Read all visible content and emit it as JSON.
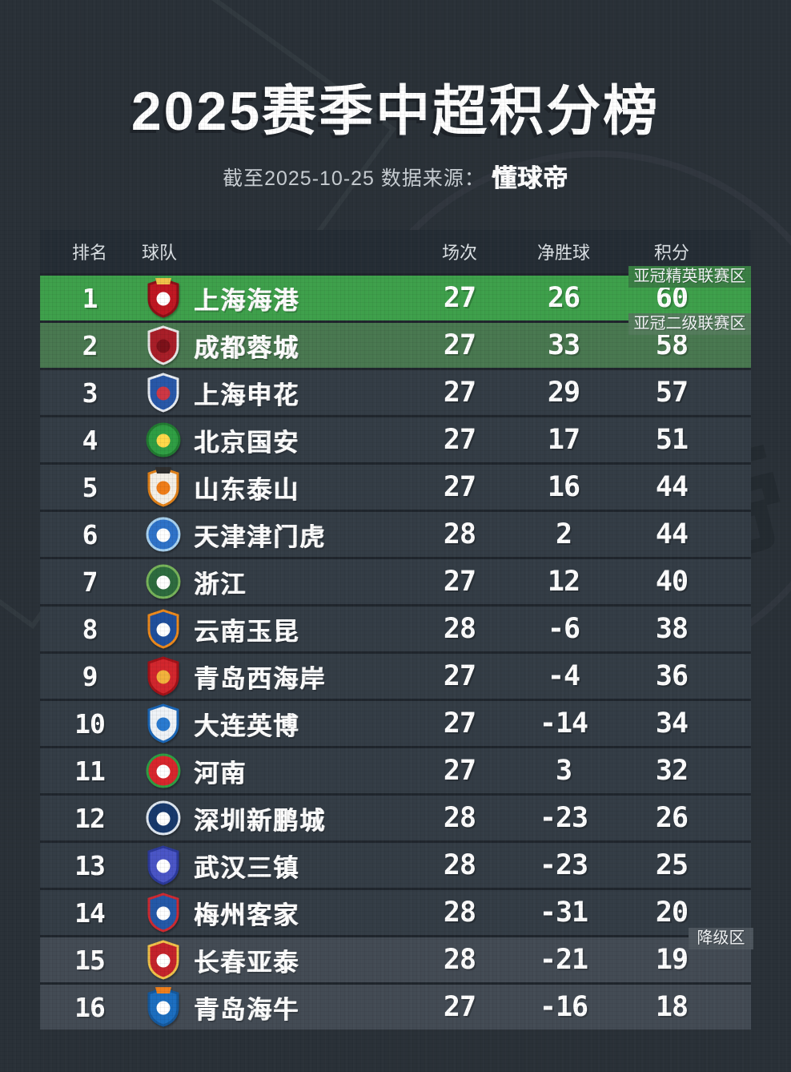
{
  "header": {
    "title": "2025赛季中超积分榜",
    "subtitle_prefix": "截至2025-10-25 数据来源：",
    "source_brand": "懂球帝"
  },
  "colors": {
    "page_bg": "#2a3138",
    "table_gap": "#20262d",
    "header_bg": "#252d35",
    "header_text": "#dce1e5",
    "text_muted": "#c9cfd4",
    "row_default": "#343d46",
    "row_leader": "#3ea04b",
    "row_acl_two": "#497850",
    "row_relegation": "#434b54",
    "chip_acl_elite": "#3a7f44",
    "chip_acl_two": "#547c5c",
    "chip_relegation": "#4e565e"
  },
  "table": {
    "columns": [
      "排名",
      "球队",
      "场次",
      "净胜球",
      "积分"
    ],
    "rows": [
      {
        "rank": "1",
        "team": "上海海港",
        "played": "27",
        "gd": "26",
        "points": "60",
        "zone": "acl-elite",
        "zone_label": "亚冠精英联赛区",
        "logo": {
          "shape": "shield",
          "bg": "#c01722",
          "ring": "#8e0f17",
          "ball": "#ffffff",
          "band": "#f0c24a"
        }
      },
      {
        "rank": "2",
        "team": "成都蓉城",
        "played": "27",
        "gd": "33",
        "points": "58",
        "zone": "acl-two",
        "zone_label": "亚冠二级联赛区",
        "logo": {
          "shape": "shield",
          "bg": "#a81e28",
          "ring": "#e8e8e8",
          "ball": "#7c1119"
        }
      },
      {
        "rank": "3",
        "team": "上海申花",
        "played": "27",
        "gd": "29",
        "points": "57",
        "zone": "normal",
        "logo": {
          "shape": "shield",
          "bg": "#2857a8",
          "ring": "#e8ecf2",
          "ball": "#cd3744"
        }
      },
      {
        "rank": "4",
        "team": "北京国安",
        "played": "27",
        "gd": "17",
        "points": "51",
        "zone": "normal",
        "logo": {
          "shape": "circle",
          "bg": "#2f9e43",
          "ring": "#217a31",
          "ball": "#ffd94a"
        }
      },
      {
        "rank": "5",
        "team": "山东泰山",
        "played": "27",
        "gd": "16",
        "points": "44",
        "zone": "normal",
        "logo": {
          "shape": "shield",
          "bg": "#f3efe6",
          "ring": "#e08119",
          "ball": "#ef7d18",
          "band": "#2e2e2e"
        }
      },
      {
        "rank": "6",
        "team": "天津津门虎",
        "played": "28",
        "gd": "2",
        "points": "44",
        "zone": "normal",
        "logo": {
          "shape": "circle",
          "bg": "#2e72c8",
          "ring": "#a9d2f0",
          "ball": "#ffffff"
        }
      },
      {
        "rank": "7",
        "team": "浙江",
        "played": "27",
        "gd": "12",
        "points": "40",
        "zone": "normal",
        "logo": {
          "shape": "circle",
          "bg": "#2d6b3e",
          "ring": "#77b45a",
          "ball": "#ffffff"
        }
      },
      {
        "rank": "8",
        "team": "云南玉昆",
        "played": "28",
        "gd": "-6",
        "points": "38",
        "zone": "normal",
        "logo": {
          "shape": "shield",
          "bg": "#1f4f9c",
          "ring": "#ee8a1c",
          "ball": "#ffffff"
        }
      },
      {
        "rank": "9",
        "team": "青岛西海岸",
        "played": "27",
        "gd": "-4",
        "points": "36",
        "zone": "normal",
        "logo": {
          "shape": "shield",
          "bg": "#d2262d",
          "ring": "#a21218",
          "ball": "#f2b23c"
        }
      },
      {
        "rank": "10",
        "team": "大连英博",
        "played": "27",
        "gd": "-14",
        "points": "34",
        "zone": "normal",
        "logo": {
          "shape": "shield",
          "bg": "#eef2f6",
          "ring": "#1a66b6",
          "ball": "#2a7ad0"
        }
      },
      {
        "rank": "11",
        "team": "河南",
        "played": "27",
        "gd": "3",
        "points": "32",
        "zone": "normal",
        "logo": {
          "shape": "circle",
          "bg": "#d8262c",
          "ring": "#2f9e43",
          "ball": "#ffffff"
        }
      },
      {
        "rank": "12",
        "team": "深圳新鹏城",
        "played": "28",
        "gd": "-23",
        "points": "26",
        "zone": "normal",
        "logo": {
          "shape": "circle",
          "bg": "#17396c",
          "ring": "#dfe7f0",
          "ball": "#ffffff"
        }
      },
      {
        "rank": "13",
        "team": "武汉三镇",
        "played": "28",
        "gd": "-23",
        "points": "25",
        "zone": "normal",
        "logo": {
          "shape": "shield",
          "bg": "#4a55c6",
          "ring": "#2c3a9c",
          "ball": "#ffffff"
        }
      },
      {
        "rank": "14",
        "team": "梅州客家",
        "played": "28",
        "gd": "-31",
        "points": "20",
        "zone": "normal",
        "logo": {
          "shape": "shield",
          "bg": "#2458a8",
          "ring": "#ce2a32",
          "ball": "#ffffff"
        }
      },
      {
        "rank": "15",
        "team": "长春亚泰",
        "played": "28",
        "gd": "-21",
        "points": "19",
        "zone": "relegation",
        "zone_label": "降级区",
        "logo": {
          "shape": "shield",
          "bg": "#c4232b",
          "ring": "#f0c24a",
          "ball": "#ffffff"
        }
      },
      {
        "rank": "16",
        "team": "青岛海牛",
        "played": "27",
        "gd": "-16",
        "points": "18",
        "zone": "relegation",
        "logo": {
          "shape": "shield",
          "bg": "#1b6ec0",
          "ring": "#15589c",
          "ball": "#ffffff",
          "band": "#ee7f1c"
        }
      }
    ]
  },
  "chart_data": {
    "type": "table",
    "title": "2025赛季中超积分榜",
    "subtitle": "截至2025-10-25 数据来源：懂球帝",
    "columns": [
      "排名",
      "球队",
      "场次",
      "净胜球",
      "积分"
    ],
    "rows": [
      [
        1,
        "上海海港",
        27,
        26,
        60
      ],
      [
        2,
        "成都蓉城",
        27,
        33,
        58
      ],
      [
        3,
        "上海申花",
        27,
        29,
        57
      ],
      [
        4,
        "北京国安",
        27,
        17,
        51
      ],
      [
        5,
        "山东泰山",
        27,
        16,
        44
      ],
      [
        6,
        "天津津门虎",
        28,
        2,
        44
      ],
      [
        7,
        "浙江",
        27,
        12,
        40
      ],
      [
        8,
        "云南玉昆",
        28,
        -6,
        38
      ],
      [
        9,
        "青岛西海岸",
        27,
        -4,
        36
      ],
      [
        10,
        "大连英博",
        27,
        -14,
        34
      ],
      [
        11,
        "河南",
        27,
        3,
        32
      ],
      [
        12,
        "深圳新鹏城",
        28,
        -23,
        26
      ],
      [
        13,
        "武汉三镇",
        28,
        -23,
        25
      ],
      [
        14,
        "梅州客家",
        28,
        -31,
        20
      ],
      [
        15,
        "长春亚泰",
        28,
        -21,
        19
      ],
      [
        16,
        "青岛海牛",
        27,
        -16,
        18
      ]
    ],
    "annotations": [
      {
        "label": "亚冠精英联赛区",
        "applies_to_rank": 1
      },
      {
        "label": "亚冠二级联赛区",
        "applies_to_rank": 2
      },
      {
        "label": "降级区",
        "applies_to_rank": 15
      }
    ]
  }
}
